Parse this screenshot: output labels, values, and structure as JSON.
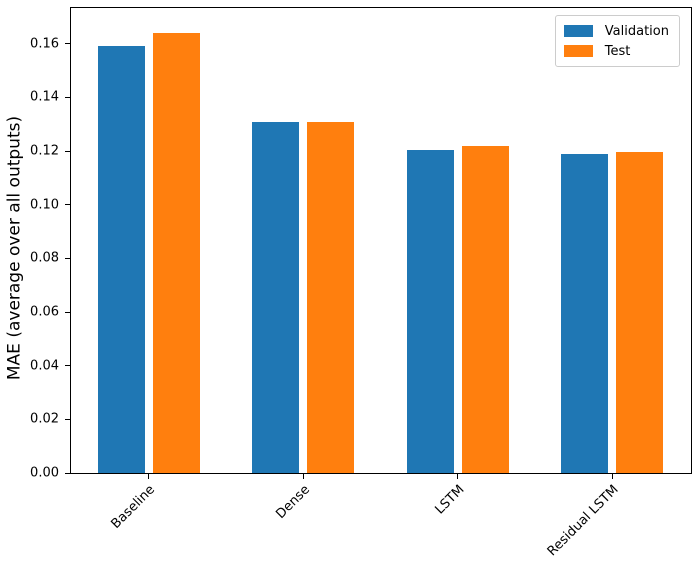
{
  "chart_data": {
    "type": "bar",
    "title": "",
    "xlabel": "",
    "ylabel": "MAE (average over all outputs)",
    "categories": [
      "Baseline",
      "Dense",
      "LSTM",
      "Residual LSTM"
    ],
    "series": [
      {
        "name": "Validation",
        "color": "#1f77b4",
        "values": [
          0.159,
          0.131,
          0.1205,
          0.119
        ]
      },
      {
        "name": "Test",
        "color": "#ff7f0e",
        "values": [
          0.164,
          0.131,
          0.122,
          0.1198
        ]
      }
    ],
    "yticks": [
      "0.00",
      "0.02",
      "0.04",
      "0.06",
      "0.08",
      "0.10",
      "0.12",
      "0.14",
      "0.16"
    ],
    "ylim": [
      0,
      0.1733
    ],
    "grid": false,
    "legend_position": "upper right",
    "x_tick_rotation": 45,
    "bar_edge_color": "none"
  }
}
